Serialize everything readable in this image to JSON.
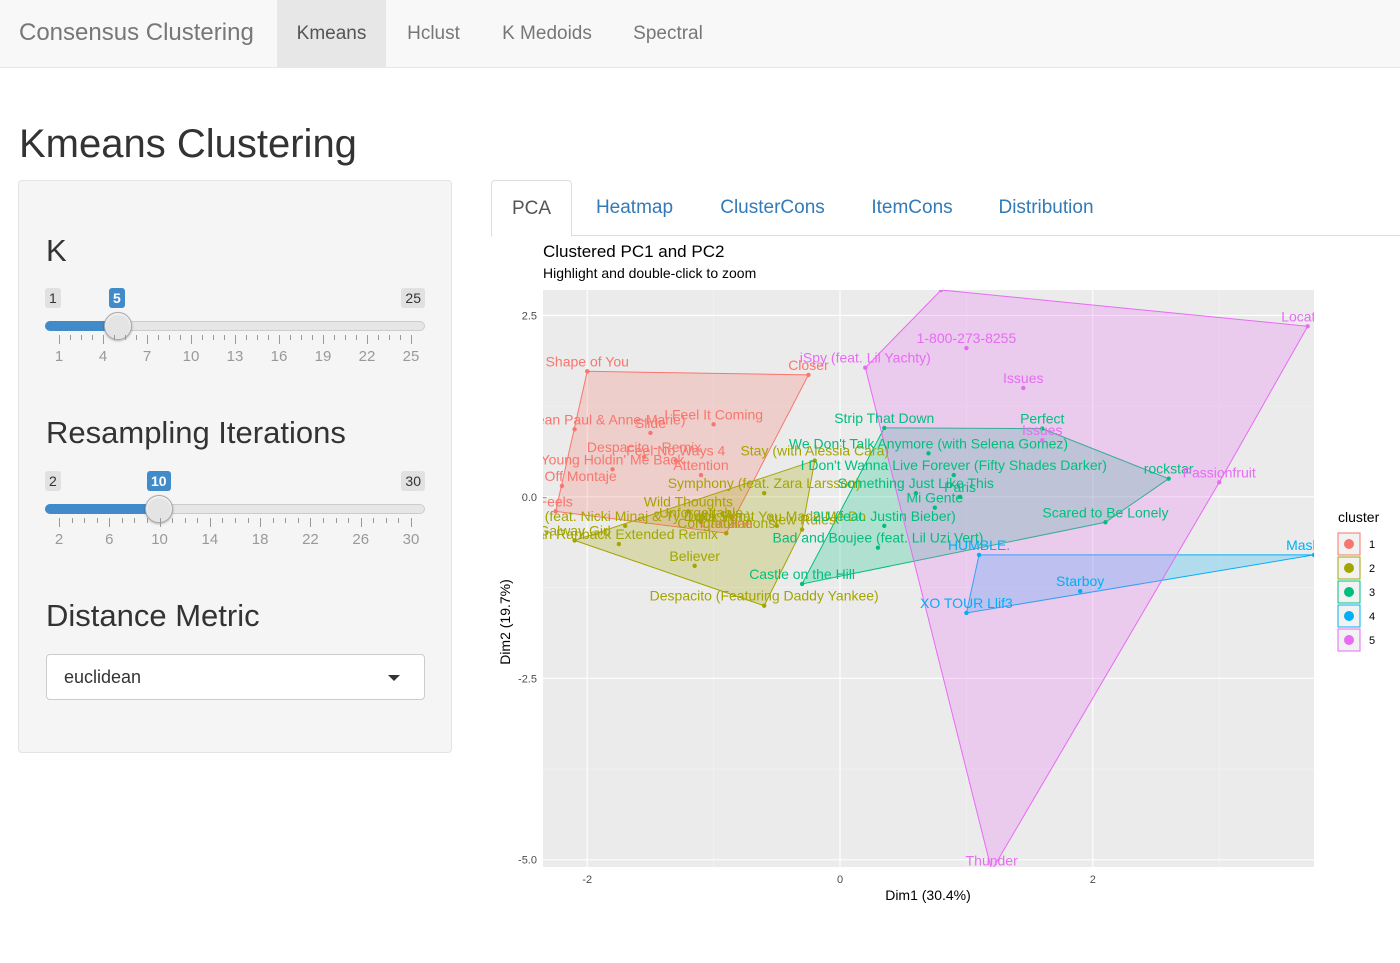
{
  "navbar": {
    "brand": "Consensus Clustering",
    "items": [
      {
        "label": "Kmeans",
        "active": true
      },
      {
        "label": "Hclust",
        "active": false
      },
      {
        "label": "K Medoids",
        "active": false
      },
      {
        "label": "Spectral",
        "active": false
      }
    ]
  },
  "page_title": "Kmeans Clustering",
  "sidebar": {
    "k": {
      "label": "K",
      "min": 1,
      "max": 25,
      "value": 5,
      "ticks": [
        "1",
        "4",
        "7",
        "10",
        "13",
        "16",
        "19",
        "22",
        "25"
      ]
    },
    "resampling": {
      "label": "Resampling Iterations",
      "min": 2,
      "max": 30,
      "value": 10,
      "ticks": [
        "2",
        "6",
        "10",
        "14",
        "18",
        "22",
        "26",
        "30"
      ]
    },
    "distance": {
      "label": "Distance Metric",
      "value": "euclidean"
    }
  },
  "tabs": [
    "PCA",
    "Heatmap",
    "ClusterCons",
    "ItemCons",
    "Distribution"
  ],
  "active_tab": "PCA",
  "plot": {
    "title": "Clustered PC1 and PC2",
    "subtitle": "Highlight and double-click to zoom",
    "legend_title": "cluster"
  },
  "colors": {
    "c1": "#F8766D",
    "c2": "#A3A500",
    "c3": "#00BF7D",
    "c4": "#00B0F6",
    "c5": "#E76BF3",
    "link": "#337ab7",
    "slider": "#428bca"
  },
  "chart_data": {
    "type": "scatter",
    "title": "Clustered PC1 and PC2",
    "subtitle": "Highlight and double-click to zoom",
    "xlabel": "Dim1 (30.4%)",
    "ylabel": "Dim2 (19.7%)",
    "xlim": [
      -2.35,
      3.75
    ],
    "ylim": [
      -5.1,
      2.85
    ],
    "xticks": [
      "-2",
      "0",
      "2"
    ],
    "yticks": [
      "2.5",
      "0.0",
      "-2.5",
      "-5.0"
    ],
    "legend_placement": "right",
    "grid": true,
    "series": [
      {
        "name": "1",
        "points": [
          {
            "x": -2.0,
            "y": 1.73,
            "label": "Shape of You"
          },
          {
            "x": -1.5,
            "y": 0.88,
            "label": "Slide"
          },
          {
            "x": -2.1,
            "y": 0.93,
            "label": "Say (feat. Sean Paul & Anne-Marie)"
          },
          {
            "x": -1.55,
            "y": 0.55,
            "label": "Despacito - Remix"
          },
          {
            "x": -1.0,
            "y": 1.0,
            "label": "I Feel It Coming"
          },
          {
            "x": -1.3,
            "y": 0.5,
            "label": "Feel No Ways 4"
          },
          {
            "x": -1.8,
            "y": 0.38,
            "label": "Young Holdin' Me Back"
          },
          {
            "x": -1.1,
            "y": 0.3,
            "label": "Attention"
          },
          {
            "x": -2.2,
            "y": 0.15,
            "label": "Mask Off Montaje"
          },
          {
            "x": -2.25,
            "y": -0.2,
            "label": "Feels"
          },
          {
            "x": -0.9,
            "y": -0.5,
            "label": "Caroline"
          },
          {
            "x": -0.25,
            "y": 1.68,
            "label": "Closer"
          }
        ]
      },
      {
        "name": "2",
        "points": [
          {
            "x": -1.7,
            "y": -0.4,
            "label": "Swalla (feat. Nicki Minaj & Ty Dolla $ign)"
          },
          {
            "x": -2.1,
            "y": -0.6,
            "label": "Galway Girl"
          },
          {
            "x": -1.75,
            "y": -0.65,
            "label": "Ryan Ranback Extended Remix"
          },
          {
            "x": -1.2,
            "y": -0.2,
            "label": "Wild Thoughts"
          },
          {
            "x": -1.1,
            "y": -0.35,
            "label": "Unforgettable"
          },
          {
            "x": -0.9,
            "y": -0.5,
            "label": "Congratulations"
          },
          {
            "x": -0.5,
            "y": -0.4,
            "label": "Look What You Made Me Do"
          },
          {
            "x": -1.15,
            "y": -0.95,
            "label": "Believer"
          },
          {
            "x": -0.6,
            "y": 0.05,
            "label": "Symphony (feat. Zara Larsson)"
          },
          {
            "x": -0.2,
            "y": 0.5,
            "label": "Stay (with Alessia Cara)"
          },
          {
            "x": -0.6,
            "y": -1.5,
            "label": "Despacito (Featuring Daddy Yankee)"
          },
          {
            "x": -0.3,
            "y": -0.45,
            "label": "New Rules"
          }
        ]
      },
      {
        "name": "3",
        "points": [
          {
            "x": 0.35,
            "y": 0.95,
            "label": "Strip That Down"
          },
          {
            "x": 1.6,
            "y": 0.94,
            "label": "Perfect"
          },
          {
            "x": 0.7,
            "y": 0.6,
            "label": "We Don't Talk Anymore (with Selena Gomez)"
          },
          {
            "x": 0.9,
            "y": 0.3,
            "label": "I Don't Wanna Live Forever (Fifty Shades Darker)"
          },
          {
            "x": 0.6,
            "y": 0.05,
            "label": "Something Just Like This"
          },
          {
            "x": 0.95,
            "y": 0.0,
            "label": "Paris"
          },
          {
            "x": 2.1,
            "y": -0.35,
            "label": "Scared to Be Lonely"
          },
          {
            "x": 0.35,
            "y": -0.4,
            "label": "2U (feat. Justin Bieber)"
          },
          {
            "x": 0.75,
            "y": -0.15,
            "label": "Mi Gente"
          },
          {
            "x": 0.3,
            "y": -0.7,
            "label": "Bad and Boujee (feat. Lil Uzi Vert)"
          },
          {
            "x": -0.3,
            "y": -1.2,
            "label": "Castle on the Hill"
          },
          {
            "x": 2.6,
            "y": 0.25,
            "label": "rockstar"
          }
        ]
      },
      {
        "name": "4",
        "points": [
          {
            "x": 1.1,
            "y": -0.8,
            "label": "HUMBLE."
          },
          {
            "x": 1.9,
            "y": -1.3,
            "label": "Starboy"
          },
          {
            "x": 1.0,
            "y": -1.6,
            "label": "XO TOUR Llif3"
          },
          {
            "x": 3.75,
            "y": -0.8,
            "label": "Mask Off"
          }
        ]
      },
      {
        "name": "5",
        "points": [
          {
            "x": 1.0,
            "y": 2.05,
            "label": "1-800-273-8255"
          },
          {
            "x": 0.2,
            "y": 1.78,
            "label": "iSpy (feat. Lil Yachty)"
          },
          {
            "x": 1.45,
            "y": 1.5,
            "label": "Issues"
          },
          {
            "x": 1.6,
            "y": 0.78,
            "label": "Issues"
          },
          {
            "x": 3.0,
            "y": 0.2,
            "label": "Passionfruit"
          },
          {
            "x": 3.7,
            "y": 2.35,
            "label": "Location"
          },
          {
            "x": 1.2,
            "y": -5.15,
            "label": "Thunder"
          },
          {
            "x": 0.8,
            "y": 2.85,
            "label": ""
          }
        ]
      }
    ]
  }
}
